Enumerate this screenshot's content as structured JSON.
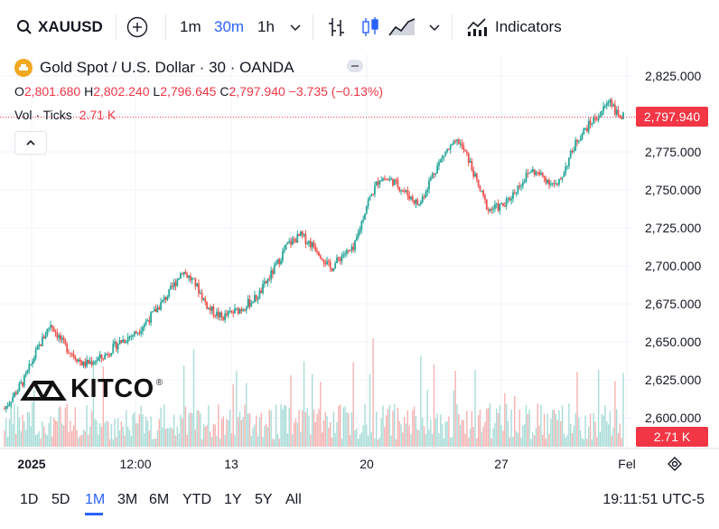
{
  "toolbar": {
    "symbol": "XAUUSD",
    "timeframes": [
      "1m",
      "30m",
      "1h"
    ],
    "active_timeframe": "30m",
    "indicators_label": "Indicators",
    "icons": [
      "search-icon",
      "add-symbol-icon",
      "chevron-down-icon",
      "bar-style-icon",
      "candles-icon",
      "area-icon",
      "indicators-icon"
    ]
  },
  "legend": {
    "title": "Gold Spot / U.S. Dollar · 30 · OANDA",
    "o_label": "O",
    "o_value": "2,801.680",
    "h_label": "H",
    "h_value": "2,802.240",
    "l_label": "L",
    "l_value": "2,796.645",
    "c_label": "C",
    "c_value": "2,797.940",
    "change": "−3.735 (−0.13%)",
    "vol_label": "Vol · Ticks",
    "vol_value": "2.71 K"
  },
  "price_axis": {
    "ticks": [
      "2,825.000",
      "2,800.000",
      "2,775.000",
      "2,750.000",
      "2,725.000",
      "2,700.000",
      "2,675.000",
      "2,650.000",
      "2,625.000",
      "2,600.000"
    ],
    "last_price_tag": "2,797.940",
    "volume_tag": "2.71 K"
  },
  "time_axis": {
    "labels": [
      "2025",
      "12:00",
      "13",
      "20",
      "27",
      "Fel"
    ]
  },
  "watermark": "KITCO",
  "bottom_bar": {
    "ranges": [
      "1D",
      "5D",
      "1M",
      "3M",
      "6M",
      "YTD",
      "1Y",
      "5Y",
      "All"
    ],
    "active_range": "1M",
    "clock": "19:11:51 UTC-5"
  },
  "colors": {
    "up": "#26a69a",
    "down": "#ef5350",
    "accent": "#2962ff",
    "price_tag": "#f23645",
    "logo": "#f0a81e"
  },
  "chart_data": {
    "type": "candlestick",
    "symbol": "XAUUSD",
    "interval": "30",
    "x_labels": [
      "2025",
      "12:00",
      "13",
      "20",
      "27",
      "Fel"
    ],
    "ylim": [
      2590,
      2830
    ],
    "close_path": {
      "x": [
        "2025",
        "",
        "",
        "",
        "12:00",
        "",
        "13",
        "",
        "",
        "",
        "20",
        "",
        "",
        "27",
        "",
        "",
        "Fel"
      ],
      "points": [
        [
          0,
          2606
        ],
        [
          6,
          2625
        ],
        [
          10,
          2645
        ],
        [
          14,
          2662
        ],
        [
          18,
          2648
        ],
        [
          24,
          2635
        ],
        [
          30,
          2640
        ],
        [
          35,
          2650
        ],
        [
          40,
          2656
        ],
        [
          45,
          2668
        ],
        [
          50,
          2682
        ],
        [
          54,
          2697
        ],
        [
          58,
          2688
        ],
        [
          62,
          2672
        ],
        [
          66,
          2666
        ],
        [
          72,
          2672
        ],
        [
          77,
          2680
        ],
        [
          82,
          2698
        ],
        [
          86,
          2714
        ],
        [
          90,
          2720
        ],
        [
          95,
          2711
        ],
        [
          99,
          2698
        ],
        [
          103,
          2708
        ],
        [
          106,
          2710
        ],
        [
          110,
          2740
        ],
        [
          114,
          2758
        ],
        [
          118,
          2756
        ],
        [
          122,
          2748
        ],
        [
          126,
          2740
        ],
        [
          130,
          2760
        ],
        [
          134,
          2775
        ],
        [
          138,
          2782
        ],
        [
          141,
          2770
        ],
        [
          144,
          2752
        ],
        [
          147,
          2737
        ],
        [
          152,
          2740
        ],
        [
          156,
          2752
        ],
        [
          160,
          2763
        ],
        [
          164,
          2758
        ],
        [
          168,
          2752
        ],
        [
          171,
          2768
        ],
        [
          174,
          2783
        ],
        [
          178,
          2794
        ],
        [
          181,
          2800
        ],
        [
          184,
          2810
        ],
        [
          186,
          2800
        ],
        [
          188,
          2798
        ]
      ]
    },
    "volume": {
      "last": "2.71 K"
    },
    "last_close": 2797.94
  }
}
